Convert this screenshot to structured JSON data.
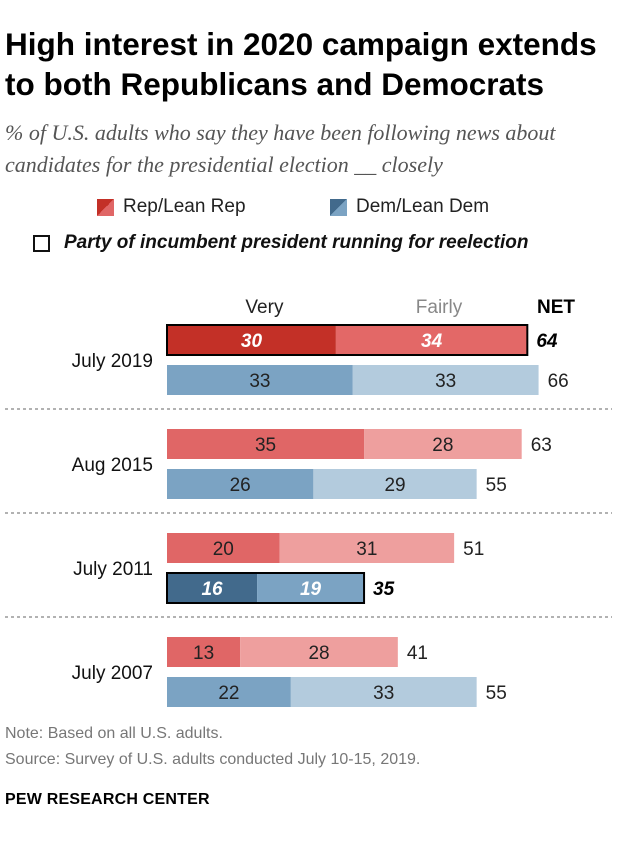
{
  "title": "High interest in 2020 campaign extends to both Republicans and Democrats",
  "subtitle": "% of U.S. adults who say they have been following news about candidates for the presidential election __ closely",
  "legend": {
    "rep": "Rep/Lean Rep",
    "dem": "Dem/Lean Dem",
    "incumbent_note": "Party of incumbent president running for reelection"
  },
  "colors": {
    "rep_very": "#e06666",
    "rep_fairly": "#ee9f9e",
    "dem_very": "#7ba3c3",
    "dem_fairly": "#b3cbdd",
    "rep_very_highlight": "#c33027",
    "rep_fairly_highlight": "#e36867",
    "dem_very_highlight": "#426a8c",
    "dem_fairly_highlight": "#7ba3c3"
  },
  "chart_data": {
    "type": "bar",
    "orientation": "horizontal",
    "stacked": true,
    "column_labels": {
      "very": "Very",
      "fairly": "Fairly",
      "net": "NET"
    },
    "xlim": [
      0,
      100
    ],
    "categories": [
      "July 2019",
      "Aug 2015",
      "July 2011",
      "July 2007"
    ],
    "groups": [
      {
        "label": "July 2019",
        "series": [
          {
            "party": "Rep/Lean Rep",
            "very": 30,
            "fairly": 34,
            "net": 64,
            "incumbent": true
          },
          {
            "party": "Dem/Lean Dem",
            "very": 33,
            "fairly": 33,
            "net": 66,
            "incumbent": false
          }
        ]
      },
      {
        "label": "Aug 2015",
        "series": [
          {
            "party": "Rep/Lean Rep",
            "very": 35,
            "fairly": 28,
            "net": 63,
            "incumbent": false
          },
          {
            "party": "Dem/Lean Dem",
            "very": 26,
            "fairly": 29,
            "net": 55,
            "incumbent": false
          }
        ]
      },
      {
        "label": "July 2011",
        "series": [
          {
            "party": "Rep/Lean Rep",
            "very": 20,
            "fairly": 31,
            "net": 51,
            "incumbent": false
          },
          {
            "party": "Dem/Lean Dem",
            "very": 16,
            "fairly": 19,
            "net": 35,
            "incumbent": true
          }
        ]
      },
      {
        "label": "July 2007",
        "series": [
          {
            "party": "Rep/Lean Rep",
            "very": 13,
            "fairly": 28,
            "net": 41,
            "incumbent": false
          },
          {
            "party": "Dem/Lean Dem",
            "very": 22,
            "fairly": 33,
            "net": 55,
            "incumbent": false
          }
        ]
      }
    ]
  },
  "notes": {
    "note": "Note: Based on all U.S. adults.",
    "source": "Source: Survey of U.S. adults conducted July 10-15, 2019."
  },
  "brand": "PEW RESEARCH CENTER"
}
